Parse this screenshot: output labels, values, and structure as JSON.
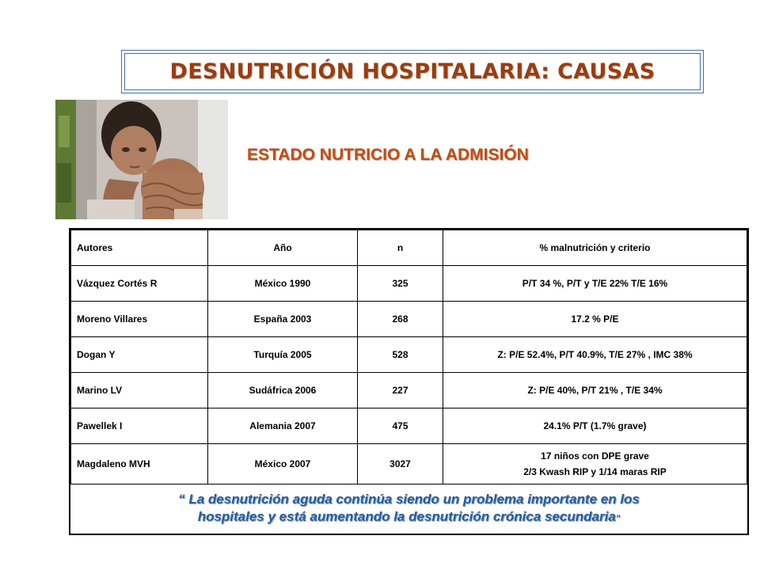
{
  "header": {
    "title": "DESNUTRICIÓN HOSPITALARIA: CAUSAS",
    "subtitle": "ESTADO NUTRICIO A LA ADMISIÓN"
  },
  "table": {
    "columns": [
      "Autores",
      "Año",
      "n",
      "% malnutrición y criterio"
    ],
    "rows": [
      [
        "Vázquez Cortés R",
        "México 1990",
        "325",
        "P/T 34 %, P/T y T/E 22% T/E 16%"
      ],
      [
        "Moreno Villares",
        "España 2003",
        "268",
        "17.2 % P/E"
      ],
      [
        "Dogan Y",
        "Turquía 2005",
        "528",
        "Z: P/E 52.4%, P/T 40.9%, T/E 27% , IMC 38%"
      ],
      [
        "Marino LV",
        "Sudáfrica 2006",
        "227",
        "Z: P/E 40%, P/T 21% , T/E 34%"
      ],
      [
        "Pawellek I",
        "Alemania 2007",
        "475",
        "24.1%  P/T (1.7% grave)"
      ],
      [
        "Magdaleno MVH",
        "México 2007",
        "3027",
        "17 niños con DPE grave\n2/3 Kwash RIP y 1/14 maras RIP"
      ]
    ]
  },
  "quote": {
    "open_mark": "“",
    "line1": " La desnutrición aguda continúa siendo un problema importante en los",
    "line2": "hospitales y está aumentando la desnutrición crónica secundaria",
    "close_mark": "”"
  },
  "colors": {
    "title": "#9b3d0d",
    "subtitle": "#c74b0e",
    "quote": "#1f5da8",
    "frame": "#3f6fa8"
  }
}
